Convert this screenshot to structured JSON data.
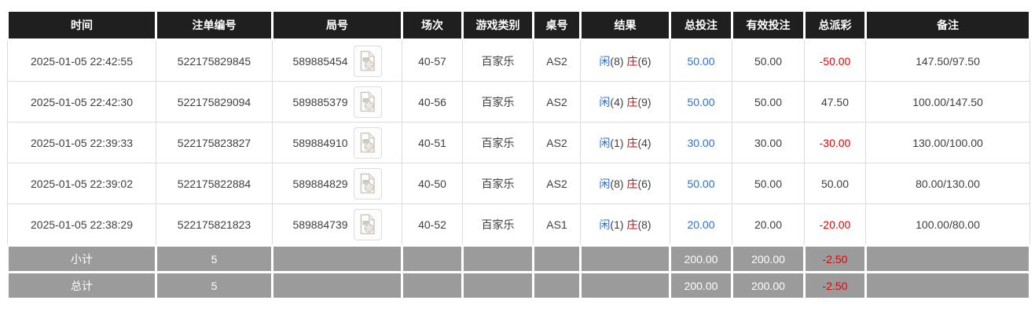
{
  "table": {
    "columns": [
      {
        "key": "time",
        "label": "时间"
      },
      {
        "key": "bet_id",
        "label": "注单编号"
      },
      {
        "key": "round",
        "label": "局号"
      },
      {
        "key": "session",
        "label": "场次"
      },
      {
        "key": "game_type",
        "label": "游戏类别"
      },
      {
        "key": "table_no",
        "label": "桌号"
      },
      {
        "key": "result",
        "label": "结果"
      },
      {
        "key": "total_bet",
        "label": "总投注"
      },
      {
        "key": "valid_bet",
        "label": "有效投注"
      },
      {
        "key": "payout",
        "label": "总派彩"
      },
      {
        "key": "remark",
        "label": "备注"
      }
    ],
    "result_labels": {
      "player": "闲",
      "banker": "庄"
    },
    "rows": [
      {
        "time": "2025-01-05 22:42:55",
        "bet_id": "522175829845",
        "round": "589885454",
        "session": "40-57",
        "game_type": "百家乐",
        "table_no": "AS2",
        "player": "8",
        "banker": "6",
        "total_bet": "50.00",
        "valid_bet": "50.00",
        "payout": "-50.00",
        "remark": "147.50/97.50"
      },
      {
        "time": "2025-01-05 22:42:30",
        "bet_id": "522175829094",
        "round": "589885379",
        "session": "40-56",
        "game_type": "百家乐",
        "table_no": "AS2",
        "player": "4",
        "banker": "9",
        "total_bet": "50.00",
        "valid_bet": "50.00",
        "payout": "47.50",
        "remark": "100.00/147.50"
      },
      {
        "time": "2025-01-05 22:39:33",
        "bet_id": "522175823827",
        "round": "589884910",
        "session": "40-51",
        "game_type": "百家乐",
        "table_no": "AS2",
        "player": "1",
        "banker": "4",
        "total_bet": "30.00",
        "valid_bet": "30.00",
        "payout": "-30.00",
        "remark": "130.00/100.00"
      },
      {
        "time": "2025-01-05 22:39:02",
        "bet_id": "522175822884",
        "round": "589884829",
        "session": "40-50",
        "game_type": "百家乐",
        "table_no": "AS2",
        "player": "8",
        "banker": "6",
        "total_bet": "50.00",
        "valid_bet": "50.00",
        "payout": "50.00",
        "remark": "80.00/130.00"
      },
      {
        "time": "2025-01-05 22:38:29",
        "bet_id": "522175821823",
        "round": "589884739",
        "session": "40-52",
        "game_type": "百家乐",
        "table_no": "AS1",
        "player": "1",
        "banker": "8",
        "total_bet": "20.00",
        "valid_bet": "20.00",
        "payout": "-20.00",
        "remark": "100.00/80.00"
      }
    ],
    "footer": [
      {
        "label": "小计",
        "count": "5",
        "total_bet": "200.00",
        "valid_bet": "200.00",
        "payout": "-2.50"
      },
      {
        "label": "总计",
        "count": "5",
        "total_bet": "200.00",
        "valid_bet": "200.00",
        "payout": "-2.50"
      }
    ]
  },
  "icons": {
    "round_action": "video-replay-icon"
  },
  "colors": {
    "header_bg": "#1f1f1f",
    "footer_bg": "#9b9b9b",
    "accent_blue": "#2e6fd0",
    "negative_red": "#e60000"
  }
}
